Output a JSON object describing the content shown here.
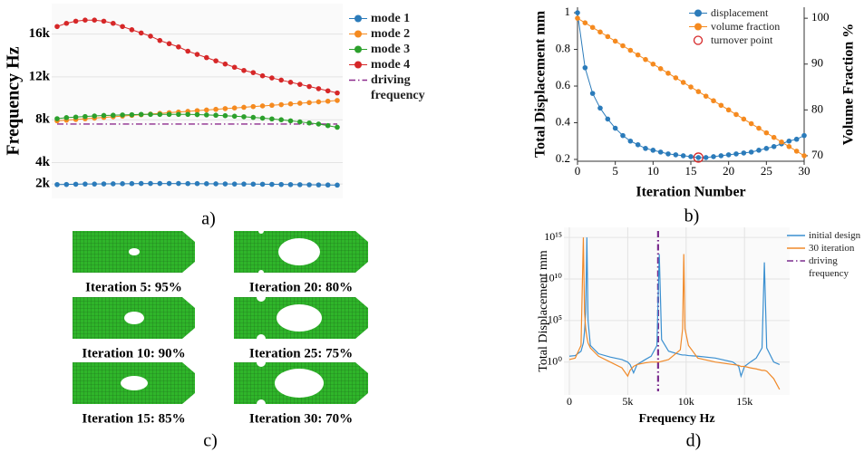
{
  "panel_labels": [
    "a)",
    "b)",
    "c)",
    "d)"
  ],
  "panel_c": {
    "captions": [
      "Iteration 5: 95%",
      "Iteration 10: 90%",
      "Iteration 15: 85%",
      "Iteration 20: 80%",
      "Iteration 25: 75%",
      "Iteration 30: 70%"
    ]
  },
  "chart_data": [
    {
      "type": "line",
      "ylabel": "Frequency Hz",
      "markers": true,
      "grid": true,
      "x": [
        0,
        1,
        2,
        3,
        4,
        5,
        6,
        7,
        8,
        9,
        10,
        11,
        12,
        13,
        14,
        15,
        16,
        17,
        18,
        19,
        20,
        21,
        22,
        23,
        24,
        25,
        26,
        27,
        28,
        29,
        30
      ],
      "xlim": [
        0,
        30
      ],
      "ylim": [
        1000,
        18500
      ],
      "yticks": [
        {
          "value": 2000,
          "label": "2k"
        },
        {
          "value": 4000,
          "label": "4k"
        },
        {
          "value": 8000,
          "label": "8k"
        },
        {
          "value": 12000,
          "label": "12k"
        },
        {
          "value": 16000,
          "label": "16k"
        }
      ],
      "series": [
        {
          "name": "mode 1",
          "color": "#2b7bba",
          "values": [
            1950,
            1960,
            1980,
            2000,
            2000,
            2010,
            2020,
            2030,
            2040,
            2050,
            2050,
            2050,
            2050,
            2050,
            2040,
            2040,
            2030,
            2020,
            2010,
            2000,
            2000,
            1990,
            1980,
            1970,
            1960,
            1950,
            1940,
            1930,
            1920,
            1910,
            1900
          ]
        },
        {
          "name": "mode 2",
          "color": "#f58a1f",
          "values": [
            7900,
            7960,
            8030,
            8090,
            8150,
            8220,
            8280,
            8340,
            8410,
            8470,
            8530,
            8590,
            8660,
            8720,
            8780,
            8850,
            8910,
            8970,
            9040,
            9100,
            9160,
            9230,
            9290,
            9350,
            9410,
            9480,
            9540,
            9600,
            9670,
            9730,
            9800
          ]
        },
        {
          "name": "mode 3",
          "color": "#2ca02c",
          "values": [
            8100,
            8200,
            8250,
            8300,
            8350,
            8400,
            8420,
            8450,
            8470,
            8500,
            8500,
            8500,
            8500,
            8500,
            8500,
            8480,
            8450,
            8420,
            8380,
            8330,
            8280,
            8220,
            8150,
            8080,
            8000,
            7900,
            7800,
            7700,
            7600,
            7450,
            7300
          ]
        },
        {
          "name": "mode 4",
          "color": "#d62728",
          "values": [
            16700,
            17000,
            17200,
            17300,
            17300,
            17200,
            17000,
            16700,
            16400,
            16100,
            15800,
            15400,
            15100,
            14800,
            14400,
            14100,
            13800,
            13500,
            13200,
            12900,
            12600,
            12400,
            12100,
            11900,
            11700,
            11500,
            11300,
            11100,
            10900,
            10700,
            10500
          ]
        }
      ],
      "reference_lines": [
        {
          "name": "driving frequency",
          "y": 7600,
          "color": "#8e2c8e",
          "style": "dashdot"
        }
      ]
    },
    {
      "type": "line",
      "xlabel": "Iteration Number",
      "ylabel": "Total Displacement mm",
      "y2label": "Volume Fraction %",
      "markers": true,
      "x": [
        0,
        1,
        2,
        3,
        4,
        5,
        6,
        7,
        8,
        9,
        10,
        11,
        12,
        13,
        14,
        15,
        16,
        17,
        18,
        19,
        20,
        21,
        22,
        23,
        24,
        25,
        26,
        27,
        28,
        29,
        30
      ],
      "xlim": [
        0,
        30
      ],
      "xticks": [
        0,
        5,
        10,
        15,
        20,
        25,
        30
      ],
      "ylim": [
        0.19,
        1.03
      ],
      "yticks": [
        0.2,
        0.4,
        0.6,
        0.8,
        1.0
      ],
      "y2lim": [
        68.8,
        102.4
      ],
      "y2ticks": [
        70,
        80,
        90,
        100
      ],
      "series": [
        {
          "name": "displacement",
          "color": "#2b7bba",
          "values": [
            1.0,
            0.7,
            0.56,
            0.48,
            0.42,
            0.37,
            0.33,
            0.3,
            0.28,
            0.26,
            0.25,
            0.24,
            0.23,
            0.225,
            0.22,
            0.215,
            0.21,
            0.21,
            0.215,
            0.22,
            0.225,
            0.23,
            0.235,
            0.24,
            0.25,
            0.26,
            0.27,
            0.285,
            0.3,
            0.31,
            0.33
          ]
        },
        {
          "name": "volume fraction",
          "color": "#f58a1f",
          "axis": "y2",
          "values": [
            100,
            99,
            98,
            97,
            96,
            95,
            94,
            93,
            92,
            91,
            90,
            89,
            88,
            87,
            86,
            85,
            84,
            83,
            82,
            81,
            80,
            79,
            78,
            77,
            76,
            75,
            74,
            73,
            72,
            71,
            70
          ]
        }
      ],
      "highlight": {
        "name": "turnover point",
        "x": 16,
        "y": 0.21,
        "color": "#d62728"
      }
    },
    {
      "type": "line",
      "xlabel": "Frequency Hz",
      "ylabel": "Total Displacement mm",
      "markers": false,
      "grid": true,
      "log_y": true,
      "x": [
        0,
        500,
        1000,
        1200,
        1300,
        1400,
        1500,
        1600,
        1800,
        2500,
        3500,
        4500,
        5000,
        5200,
        5500,
        5800,
        6500,
        7000,
        7500,
        7700,
        7900,
        8500,
        9500,
        9700,
        9800,
        9900,
        10200,
        11000,
        12500,
        14000,
        14500,
        14700,
        15000,
        15500,
        16000,
        16500,
        16700,
        16900,
        17500,
        18000
      ],
      "xlim": [
        0,
        18400
      ],
      "xticks": [
        0,
        {
          "value": 5000,
          "label": "5k"
        },
        {
          "value": 10000,
          "label": "10k"
        },
        {
          "value": 15000,
          "label": "15k"
        }
      ],
      "ylim": [
        0.0003,
        6000000000000000
      ],
      "yticks": [
        {
          "value": 1,
          "label": "10⁰"
        },
        {
          "value": 100000,
          "label": "10⁵"
        },
        {
          "value": 10000000000,
          "label": "10¹⁰"
        },
        {
          "value": 1000000000000000,
          "label": "10¹⁵"
        }
      ],
      "series": [
        {
          "name": "initial design",
          "color": "#3a8fd0",
          "values": [
            5,
            6,
            20,
            200,
            5000,
            1000000,
            1000000000000000,
            100000,
            100,
            10,
            4,
            2,
            1,
            0.5,
            0.05,
            0.5,
            2,
            5,
            100,
            10000000000000,
            500,
            20,
            8,
            7,
            7,
            7,
            6,
            5,
            3,
            1,
            0.3,
            0.02,
            0.3,
            1,
            3,
            50,
            1000000000000,
            50,
            1,
            0.5
          ]
        },
        {
          "name": "30 iteration",
          "color": "#f08a2a",
          "values": [
            2,
            3,
            100,
            1000000000000000,
            1000000,
            10000,
            1000,
            200,
            50,
            5,
            1,
            0.2,
            0.02,
            0.1,
            0.3,
            0.5,
            0.8,
            1,
            1,
            1,
            1.2,
            2,
            30,
            10000,
            10000000000000,
            10000,
            100,
            3,
            1,
            0.5,
            0.4,
            0.3,
            0.3,
            0.2,
            0.15,
            0.1,
            0.1,
            0.08,
            0.01,
            0.0005
          ]
        }
      ],
      "reference_lines": [
        {
          "name": "driving frequency",
          "x": 7600,
          "color": "#7b2d8e",
          "style": "dashdot"
        }
      ]
    }
  ]
}
